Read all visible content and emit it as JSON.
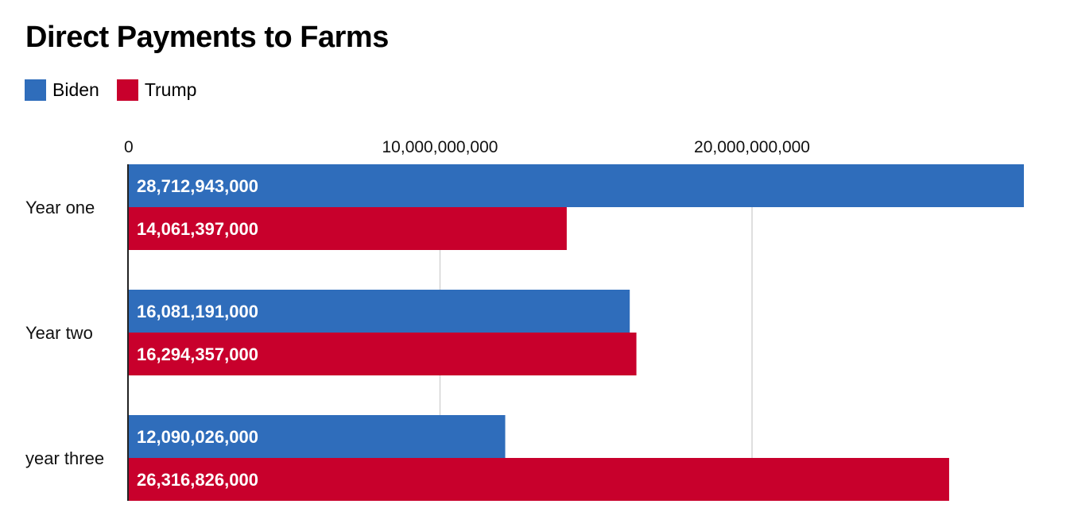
{
  "title": "Direct Payments to Farms",
  "legend": [
    {
      "label": "Biden",
      "color": "#2f6dbb"
    },
    {
      "label": "Trump",
      "color": "#c8002c"
    }
  ],
  "chart_data": {
    "type": "bar",
    "orientation": "horizontal",
    "title": "Direct Payments to Farms",
    "categories": [
      "Year one",
      "Year two",
      "year three"
    ],
    "series": [
      {
        "name": "Biden",
        "color": "#2f6dbb",
        "values": [
          28712943000,
          16081191000,
          12090026000
        ],
        "labels": [
          "28,712,943,000",
          "16,081,191,000",
          "12,090,026,000"
        ]
      },
      {
        "name": "Trump",
        "color": "#c8002c",
        "values": [
          14061397000,
          16294357000,
          26316826000
        ],
        "labels": [
          "14,061,397,000",
          "16,294,357,000",
          "26,316,826,000"
        ]
      }
    ],
    "xticks": [
      {
        "value": 0,
        "label": "0"
      },
      {
        "value": 10000000000,
        "label": "10,000,000,000"
      },
      {
        "value": 20000000000,
        "label": "20,000,000,000"
      }
    ],
    "xlim": [
      0,
      28712943000
    ],
    "grid": true,
    "legend_position": "top-left"
  }
}
